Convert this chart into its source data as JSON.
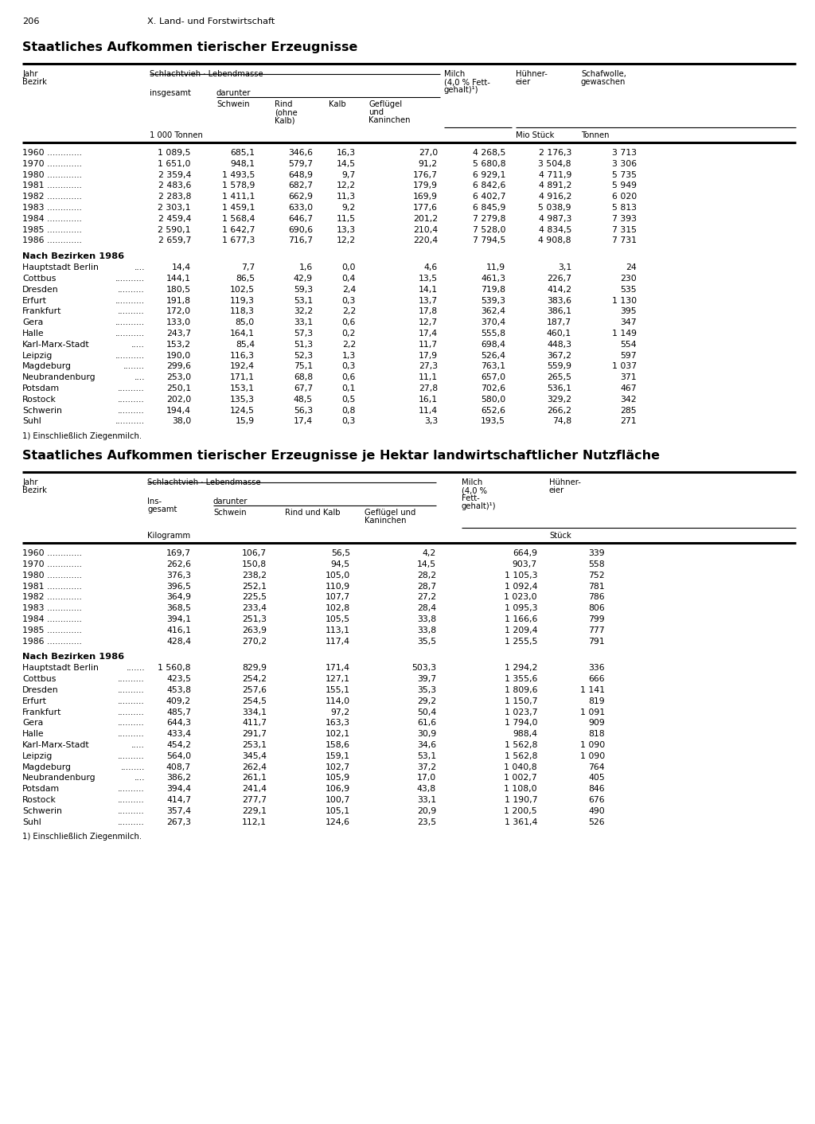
{
  "page_num": "206",
  "page_header": "X. Land- und Forstwirtschaft",
  "title1": "Staatliches Aufkommen tierischer Erzeugnisse",
  "title2": "Staatliches Aufkommen tierischer Erzeugnisse je Hektar landwirtschaftlicher Nutzfläche",
  "table1": {
    "years_data": [
      [
        "1960",
        "1 089,5",
        "685,1",
        "346,6",
        "16,3",
        "27,0",
        "4 268,5",
        "2 176,3",
        "3 713"
      ],
      [
        "1970",
        "1 651,0",
        "948,1",
        "579,7",
        "14,5",
        "91,2",
        "5 680,8",
        "3 504,8",
        "3 306"
      ],
      [
        "1980",
        "2 359,4",
        "1 493,5",
        "648,9",
        "9,7",
        "176,7",
        "6 929,1",
        "4 711,9",
        "5 735"
      ],
      [
        "1981",
        "2 483,6",
        "1 578,9",
        "682,7",
        "12,2",
        "179,9",
        "6 842,6",
        "4 891,2",
        "5 949"
      ],
      [
        "1982",
        "2 283,8",
        "1 411,1",
        "662,9",
        "11,3",
        "169,9",
        "6 402,7",
        "4 916,2",
        "6 020"
      ],
      [
        "1983",
        "2 303,1",
        "1 459,1",
        "633,0",
        "9,2",
        "177,6",
        "6 845,9",
        "5 038,9",
        "5 813"
      ],
      [
        "1984",
        "2 459,4",
        "1 568,4",
        "646,7",
        "11,5",
        "201,2",
        "7 279,8",
        "4 987,3",
        "7 393"
      ],
      [
        "1985",
        "2 590,1",
        "1 642,7",
        "690,6",
        "13,3",
        "210,4",
        "7 528,0",
        "4 834,5",
        "7 315"
      ],
      [
        "1986",
        "2 659,7",
        "1 677,3",
        "716,7",
        "12,2",
        "220,4",
        "7 794,5",
        "4 908,8",
        "7 731"
      ]
    ],
    "bezirk_section": "Nach Bezirken 1986",
    "bezirk_data": [
      [
        "Hauptstadt Berlin",
        "....",
        "14,4",
        "7,7",
        "1,6",
        "0,0",
        "4,6",
        "11,9",
        "3,1",
        "24"
      ],
      [
        "Cottbus",
        "...........",
        "144,1",
        "86,5",
        "42,9",
        "0,4",
        "13,5",
        "461,3",
        "226,7",
        "230"
      ],
      [
        "Dresden",
        "..........",
        "180,5",
        "102,5",
        "59,3",
        "2,4",
        "14,1",
        "719,8",
        "414,2",
        "535"
      ],
      [
        "Erfurt",
        "...........",
        "191,8",
        "119,3",
        "53,1",
        "0,3",
        "13,7",
        "539,3",
        "383,6",
        "1 130"
      ],
      [
        "Frankfurt",
        "..........",
        "172,0",
        "118,3",
        "32,2",
        "2,2",
        "17,8",
        "362,4",
        "386,1",
        "395"
      ],
      [
        "Gera",
        "...........",
        "133,0",
        "85,0",
        "33,1",
        "0,6",
        "12,7",
        "370,4",
        "187,7",
        "347"
      ],
      [
        "Halle",
        "...........",
        "243,7",
        "164,1",
        "57,3",
        "0,2",
        "17,4",
        "555,8",
        "460,1",
        "1 149"
      ],
      [
        "Karl-Marx-Stadt",
        ".....",
        "153,2",
        "85,4",
        "51,3",
        "2,2",
        "11,7",
        "698,4",
        "448,3",
        "554"
      ],
      [
        "Leipzig",
        "...........",
        "190,0",
        "116,3",
        "52,3",
        "1,3",
        "17,9",
        "526,4",
        "367,2",
        "597"
      ],
      [
        "Magdeburg",
        "........",
        "299,6",
        "192,4",
        "75,1",
        "0,3",
        "27,3",
        "763,1",
        "559,9",
        "1 037"
      ],
      [
        "Neubrandenburg",
        "....",
        "253,0",
        "171,1",
        "68,8",
        "0,6",
        "11,1",
        "657,0",
        "265,5",
        "371"
      ],
      [
        "Potsdam",
        "..........",
        "250,1",
        "153,1",
        "67,7",
        "0,1",
        "27,8",
        "702,6",
        "536,1",
        "467"
      ],
      [
        "Rostock",
        "..........",
        "202,0",
        "135,3",
        "48,5",
        "0,5",
        "16,1",
        "580,0",
        "329,2",
        "342"
      ],
      [
        "Schwerin",
        "..........",
        "194,4",
        "124,5",
        "56,3",
        "0,8",
        "11,4",
        "652,6",
        "266,2",
        "285"
      ],
      [
        "Suhl",
        "...........",
        "38,0",
        "15,9",
        "17,4",
        "0,3",
        "3,3",
        "193,5",
        "74,8",
        "271"
      ]
    ],
    "footnote": "1) Einschließlich Ziegenmilch."
  },
  "table2": {
    "years_data": [
      [
        "1960",
        "169,7",
        "106,7",
        "56,5",
        "4,2",
        "664,9",
        "339"
      ],
      [
        "1970",
        "262,6",
        "150,8",
        "94,5",
        "14,5",
        "903,7",
        "558"
      ],
      [
        "1980",
        "376,3",
        "238,2",
        "105,0",
        "28,2",
        "1 105,3",
        "752"
      ],
      [
        "1981",
        "396,5",
        "252,1",
        "110,9",
        "28,7",
        "1 092,4",
        "781"
      ],
      [
        "1982",
        "364,9",
        "225,5",
        "107,7",
        "27,2",
        "1 023,0",
        "786"
      ],
      [
        "1983",
        "368,5",
        "233,4",
        "102,8",
        "28,4",
        "1 095,3",
        "806"
      ],
      [
        "1984",
        "394,1",
        "251,3",
        "105,5",
        "33,8",
        "1 166,6",
        "799"
      ],
      [
        "1985",
        "416,1",
        "263,9",
        "113,1",
        "33,8",
        "1 209,4",
        "777"
      ],
      [
        "1986",
        "428,4",
        "270,2",
        "117,4",
        "35,5",
        "1 255,5",
        "791"
      ]
    ],
    "bezirk_section": "Nach Bezirken 1986",
    "bezirk_data": [
      [
        "Hauptstadt Berlin",
        ".......",
        "1 560,8",
        "829,9",
        "171,4",
        "503,3",
        "1 294,2",
        "336"
      ],
      [
        "Cottbus",
        "..........",
        "423,5",
        "254,2",
        "127,1",
        "39,7",
        "1 355,6",
        "666"
      ],
      [
        "Dresden",
        "..........",
        "453,8",
        "257,6",
        "155,1",
        "35,3",
        "1 809,6",
        "1 141"
      ],
      [
        "Erfurt",
        "..........",
        "409,2",
        "254,5",
        "114,0",
        "29,2",
        "1 150,7",
        "819"
      ],
      [
        "Frankfurt",
        "..........",
        "485,7",
        "334,1",
        "97,2",
        "50,4",
        "1 023,7",
        "1 091"
      ],
      [
        "Gera",
        "..........",
        "644,3",
        "411,7",
        "163,3",
        "61,6",
        "1 794,0",
        "909"
      ],
      [
        "Halle",
        "..........",
        "433,4",
        "291,7",
        "102,1",
        "30,9",
        "988,4",
        "818"
      ],
      [
        "Karl-Marx-Stadt",
        ".....",
        "454,2",
        "253,1",
        "158,6",
        "34,6",
        "1 562,8",
        "1 090"
      ],
      [
        "Leipzig",
        "..........",
        "564,0",
        "345,4",
        "159,1",
        "53,1",
        "1 562,8",
        "1 090"
      ],
      [
        "Magdeburg",
        ".........",
        "408,7",
        "262,4",
        "102,7",
        "37,2",
        "1 040,8",
        "764"
      ],
      [
        "Neubrandenburg",
        "....",
        "386,2",
        "261,1",
        "105,9",
        "17,0",
        "1 002,7",
        "405"
      ],
      [
        "Potsdam",
        "..........",
        "394,4",
        "241,4",
        "106,9",
        "43,8",
        "1 108,0",
        "846"
      ],
      [
        "Rostock",
        "..........",
        "414,7",
        "277,7",
        "100,7",
        "33,1",
        "1 190,7",
        "676"
      ],
      [
        "Schwerin",
        "..........",
        "357,4",
        "229,1",
        "105,1",
        "20,9",
        "1 200,5",
        "490"
      ],
      [
        "Suhl",
        "..........",
        "267,3",
        "112,1",
        "124,6",
        "23,5",
        "1 361,4",
        "526"
      ]
    ],
    "footnote": "1) Einschließlich Ziegenmilch."
  }
}
